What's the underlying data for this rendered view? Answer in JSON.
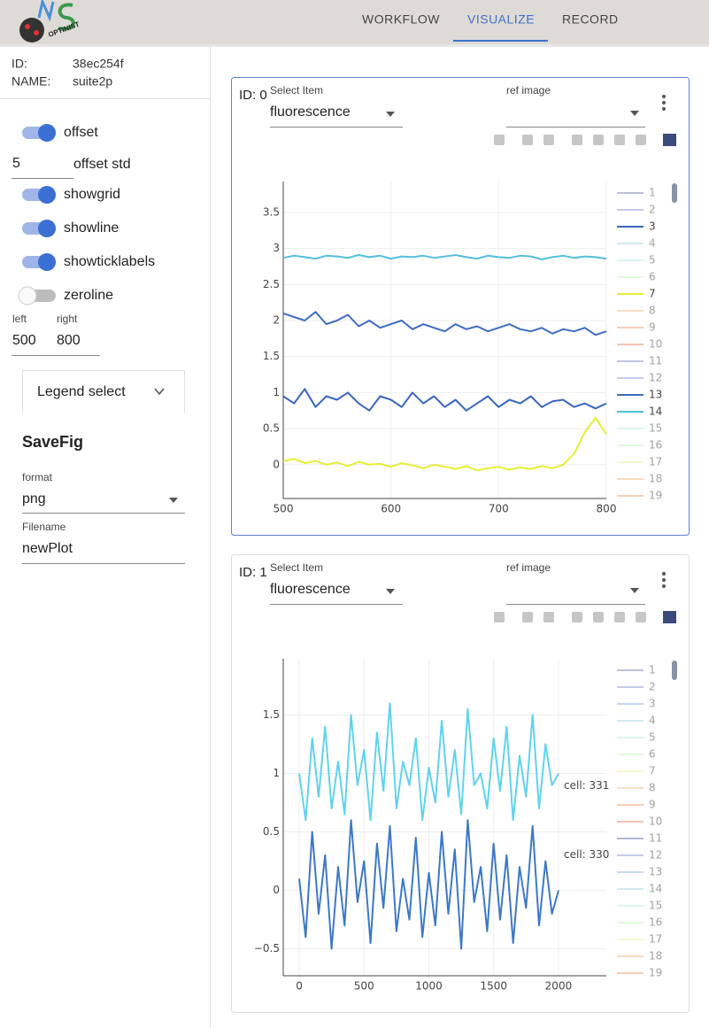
{
  "header": {
    "logo_text": "OPTINIST",
    "nav": [
      "WORKFLOW",
      "VISUALIZE",
      "RECORD"
    ],
    "active_nav": 1
  },
  "sidebar": {
    "id_label": "ID:",
    "id": "38ec254f",
    "name_label": "NAME:",
    "name": "suite2p",
    "switches": [
      {
        "label": "offset",
        "on": true
      },
      {
        "label": "showgrid",
        "on": true
      },
      {
        "label": "showline",
        "on": true
      },
      {
        "label": "showticklabels",
        "on": true
      },
      {
        "label": "zeroline",
        "on": false
      }
    ],
    "offset_std": {
      "value": "5",
      "label": "offset std"
    },
    "range": {
      "left_label": "left",
      "left": "500",
      "right_label": "right",
      "right": "800"
    },
    "legend_select": "Legend select",
    "savefig": {
      "title": "SaveFig",
      "format_label": "format",
      "format": "png",
      "filename_label": "Filename",
      "filename": "newPlot"
    }
  },
  "panels": [
    {
      "id_label": "ID: 0",
      "selected": true,
      "select_label": "Select Item",
      "select_value": "fluorescence",
      "ref_label": "ref image",
      "chart_data": {
        "type": "line",
        "grid": true,
        "x": [
          500,
          510,
          520,
          530,
          540,
          550,
          560,
          570,
          580,
          590,
          600,
          610,
          620,
          630,
          640,
          650,
          660,
          670,
          680,
          690,
          700,
          710,
          720,
          730,
          740,
          750,
          760,
          770,
          780,
          790,
          800
        ],
        "xlim": [
          500,
          800
        ],
        "xticks": [
          500,
          600,
          700,
          800
        ],
        "ylim": [
          -0.47,
          3.93
        ],
        "yticks": [
          0,
          0.5,
          1,
          1.5,
          2,
          2.5,
          3,
          3.5
        ],
        "legend": [
          {
            "name": "1",
            "color": "#7b7fc0",
            "visible": false
          },
          {
            "name": "2",
            "color": "#8f97d6",
            "visible": false
          },
          {
            "name": "3",
            "color": "#3a66c0",
            "visible": true
          },
          {
            "name": "4",
            "color": "#9fd8e6",
            "visible": false
          },
          {
            "name": "5",
            "color": "#b8f0e0",
            "visible": false
          },
          {
            "name": "6",
            "color": "#c9f2c0",
            "visible": false
          },
          {
            "name": "7",
            "color": "#e3f032",
            "visible": true
          },
          {
            "name": "8",
            "color": "#f5c08a",
            "visible": false
          },
          {
            "name": "9",
            "color": "#f2a070",
            "visible": false
          },
          {
            "name": "10",
            "color": "#e88a68",
            "visible": false
          },
          {
            "name": "11",
            "color": "#8888c8",
            "visible": false
          },
          {
            "name": "12",
            "color": "#8f97d6",
            "visible": false
          },
          {
            "name": "13",
            "color": "#3f6cc4",
            "visible": true
          },
          {
            "name": "14",
            "color": "#54bfdc",
            "visible": true
          },
          {
            "name": "15",
            "color": "#b8f0e0",
            "visible": false
          },
          {
            "name": "16",
            "color": "#c9f2c0",
            "visible": false
          },
          {
            "name": "17",
            "color": "#ecf5a0",
            "visible": false
          },
          {
            "name": "18",
            "color": "#f5b880",
            "visible": false
          },
          {
            "name": "19",
            "color": "#f0a070",
            "visible": false
          }
        ],
        "series": [
          {
            "legend_index": 6,
            "color": "#e3f032",
            "values": [
              0.05,
              0.08,
              0.02,
              0.05,
              0.0,
              0.03,
              -0.02,
              0.04,
              0.0,
              0.01,
              -0.03,
              0.02,
              -0.01,
              -0.05,
              0.0,
              -0.03,
              -0.06,
              -0.02,
              -0.08,
              -0.05,
              -0.03,
              -0.07,
              -0.04,
              -0.06,
              -0.02,
              -0.05,
              0.0,
              0.15,
              0.45,
              0.65,
              0.42
            ]
          },
          {
            "legend_index": 2,
            "color": "#3a66c0",
            "values": [
              0.95,
              0.85,
              1.05,
              0.8,
              0.95,
              0.9,
              1.0,
              0.85,
              0.75,
              0.95,
              0.9,
              0.8,
              1.0,
              0.85,
              0.95,
              0.8,
              0.9,
              0.75,
              0.85,
              0.95,
              0.8,
              0.9,
              0.85,
              0.95,
              0.8,
              0.88,
              0.9,
              0.8,
              0.85,
              0.78,
              0.85
            ]
          },
          {
            "legend_index": 12,
            "color": "#3f6cc4",
            "values": [
              2.1,
              2.05,
              2.0,
              2.12,
              1.95,
              2.0,
              2.08,
              1.92,
              2.0,
              1.9,
              1.95,
              2.0,
              1.88,
              1.95,
              1.9,
              1.85,
              1.95,
              1.88,
              1.92,
              1.85,
              1.9,
              1.95,
              1.88,
              1.85,
              1.9,
              1.82,
              1.88,
              1.85,
              1.9,
              1.8,
              1.85
            ]
          },
          {
            "legend_index": 13,
            "color": "#54bfdc",
            "values": [
              2.87,
              2.9,
              2.88,
              2.86,
              2.9,
              2.89,
              2.87,
              2.91,
              2.88,
              2.9,
              2.86,
              2.89,
              2.88,
              2.9,
              2.87,
              2.89,
              2.91,
              2.88,
              2.86,
              2.9,
              2.88,
              2.87,
              2.9,
              2.89,
              2.85,
              2.88,
              2.9,
              2.87,
              2.89,
              2.88,
              2.86
            ]
          }
        ]
      }
    },
    {
      "id_label": "ID: 1",
      "selected": false,
      "select_label": "Select Item",
      "select_value": "fluorescence",
      "ref_label": "ref image",
      "chart_data": {
        "type": "line",
        "grid": true,
        "x": [
          0,
          50,
          100,
          150,
          200,
          250,
          300,
          350,
          400,
          450,
          500,
          550,
          600,
          650,
          700,
          750,
          800,
          850,
          900,
          950,
          1000,
          1050,
          1100,
          1150,
          1200,
          1250,
          1300,
          1350,
          1400,
          1450,
          1500,
          1550,
          1600,
          1650,
          1700,
          1750,
          1800,
          1850,
          1900,
          1950,
          2000
        ],
        "xlim": [
          -123,
          2369
        ],
        "xticks": [
          0,
          500,
          1000,
          1500,
          2000
        ],
        "ylim": [
          -0.73,
          1.98
        ],
        "yticks": [
          {
            "value": -0.5,
            "label": "−0.5"
          },
          0,
          0.5,
          1,
          1.5
        ],
        "legend": [
          {
            "name": "1",
            "color": "#7b7fc0",
            "visible": false
          },
          {
            "name": "2",
            "color": "#8f97d6",
            "visible": false
          },
          {
            "name": "3",
            "color": "#8fb4e0",
            "visible": false
          },
          {
            "name": "4",
            "color": "#9fd8e6",
            "visible": false
          },
          {
            "name": "5",
            "color": "#b8f0e0",
            "visible": false
          },
          {
            "name": "6",
            "color": "#c9f2c0",
            "visible": false
          },
          {
            "name": "7",
            "color": "#ecf5a0",
            "visible": false
          },
          {
            "name": "8",
            "color": "#f5c08a",
            "visible": false
          },
          {
            "name": "9",
            "color": "#f2a070",
            "visible": false
          },
          {
            "name": "10",
            "color": "#e88a68",
            "visible": false
          },
          {
            "name": "11",
            "color": "#6f73b0",
            "visible": false
          },
          {
            "name": "12",
            "color": "#8f97d6",
            "visible": false
          },
          {
            "name": "13",
            "color": "#8fb4e0",
            "visible": false
          },
          {
            "name": "14",
            "color": "#9fd8e6",
            "visible": false
          },
          {
            "name": "15",
            "color": "#b8f0e0",
            "visible": false
          },
          {
            "name": "16",
            "color": "#c9f2c0",
            "visible": false
          },
          {
            "name": "17",
            "color": "#ecf5a0",
            "visible": false
          },
          {
            "name": "18",
            "color": "#f5b880",
            "visible": false
          },
          {
            "name": "19",
            "color": "#f0a070",
            "visible": false
          }
        ],
        "series": [
          {
            "name": "cell: 331",
            "color": "#5fd3ee",
            "values": [
              1.0,
              0.6,
              1.3,
              0.8,
              1.4,
              0.7,
              1.1,
              0.65,
              1.5,
              0.9,
              1.2,
              0.6,
              1.35,
              0.85,
              1.6,
              0.7,
              1.1,
              0.9,
              1.3,
              0.6,
              1.05,
              0.75,
              1.45,
              0.8,
              1.2,
              0.65,
              1.55,
              0.9,
              1.0,
              0.7,
              1.3,
              0.85,
              1.4,
              0.6,
              1.15,
              0.8,
              1.5,
              0.7,
              1.25,
              0.9,
              1.0
            ]
          },
          {
            "name": "cell: 330",
            "color": "#3c78c8",
            "values": [
              0.1,
              -0.4,
              0.5,
              -0.2,
              0.3,
              -0.5,
              0.2,
              -0.3,
              0.6,
              -0.1,
              0.25,
              -0.45,
              0.4,
              -0.15,
              0.55,
              -0.35,
              0.1,
              -0.25,
              0.45,
              -0.4,
              0.15,
              -0.3,
              0.5,
              -0.2,
              0.35,
              -0.5,
              0.6,
              -0.1,
              0.2,
              -0.35,
              0.4,
              -0.25,
              0.3,
              -0.45,
              0.2,
              -0.15,
              0.55,
              -0.3,
              0.25,
              -0.2,
              0.0
            ]
          }
        ]
      }
    }
  ]
}
